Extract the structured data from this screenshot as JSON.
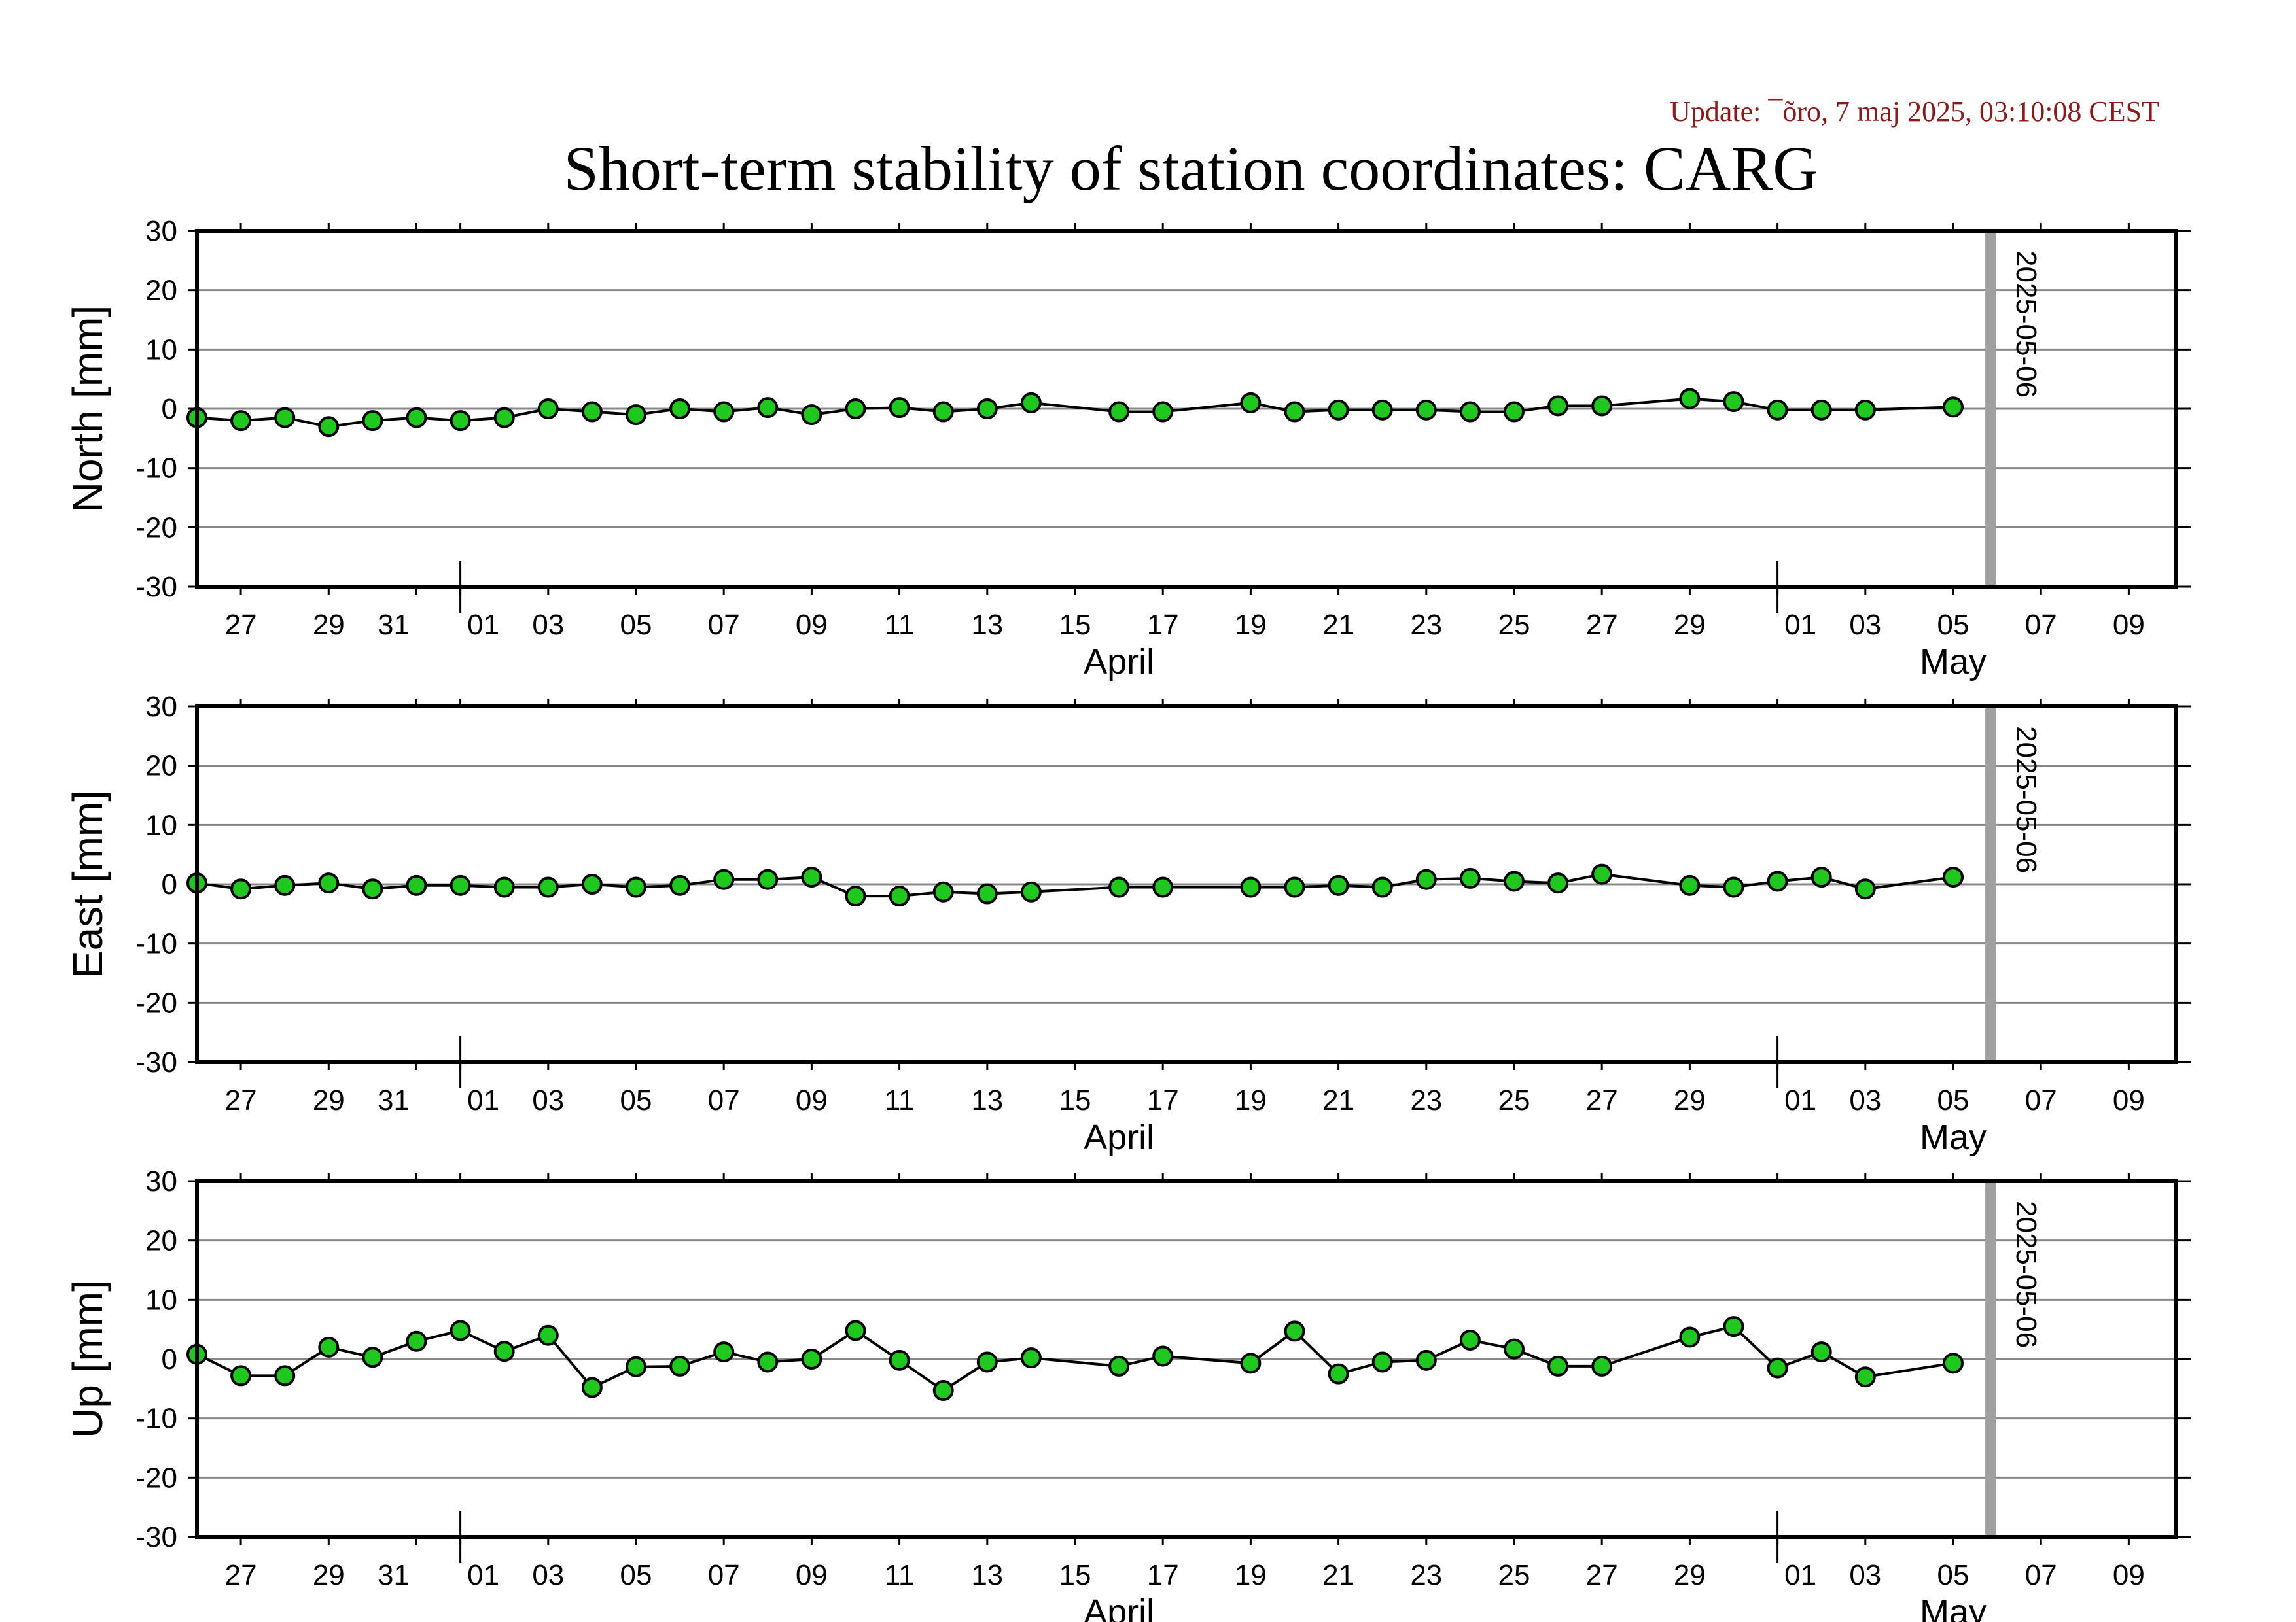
{
  "update_text": "Update: ¯õro, 7 maj 2025, 03:10:08 CEST",
  "title": "Short-term stability of station coordinates: CARG",
  "colors": {
    "marker_fill": "#1fc71f",
    "marker_line": "#000000",
    "grid": "#888888",
    "today_bar": "#a0a0a0",
    "update": "#8b1a1a"
  },
  "chart_data": [
    {
      "type": "line",
      "ylabel": "North [mm]",
      "ylim": [
        -30,
        30
      ],
      "yticks": [
        30,
        20,
        10,
        0,
        -10,
        -20,
        -30
      ],
      "xlim": [
        "2025-03-26",
        "2025-05-10"
      ],
      "xtick_labels": [
        "27",
        "29",
        "31",
        "01",
        "03",
        "05",
        "07",
        "09",
        "11",
        "13",
        "15",
        "17",
        "19",
        "21",
        "23",
        "25",
        "27",
        "29",
        "01",
        "03",
        "05",
        "07",
        "09"
      ],
      "months": [
        {
          "label": "April",
          "center": "2025-04-16"
        },
        {
          "label": "May",
          "center": "2025-05-05"
        }
      ],
      "marker_label": "2025-05-06",
      "grid": true,
      "series": [
        {
          "x": [
            "2025-03-26",
            "2025-03-27",
            "2025-03-28",
            "2025-03-29",
            "2025-03-30",
            "2025-03-31",
            "2025-04-01",
            "2025-04-02",
            "2025-04-03",
            "2025-04-04",
            "2025-04-05",
            "2025-04-06",
            "2025-04-07",
            "2025-04-08",
            "2025-04-09",
            "2025-04-10",
            "2025-04-11",
            "2025-04-12",
            "2025-04-13",
            "2025-04-14",
            "2025-04-16",
            "2025-04-17",
            "2025-04-19",
            "2025-04-20",
            "2025-04-21",
            "2025-04-22",
            "2025-04-23",
            "2025-04-24",
            "2025-04-25",
            "2025-04-26",
            "2025-04-27",
            "2025-04-29",
            "2025-04-30",
            "2025-05-01",
            "2025-05-02",
            "2025-05-03",
            "2025-05-05"
          ],
          "y": [
            -1.5,
            -2,
            -1.5,
            -3,
            -2,
            -1.5,
            -2,
            -1.5,
            0,
            -0.5,
            -1,
            0,
            -0.5,
            0.2,
            -1,
            0,
            0.2,
            -0.5,
            0,
            1,
            -0.5,
            -0.5,
            1,
            -0.5,
            -0.2,
            -0.2,
            -0.2,
            -0.5,
            -0.5,
            0.5,
            0.5,
            1.7,
            1.2,
            -0.2,
            -0.2,
            -0.2,
            0.3
          ]
        }
      ]
    },
    {
      "type": "line",
      "ylabel": "East [mm]",
      "ylim": [
        -30,
        30
      ],
      "yticks": [
        30,
        20,
        10,
        0,
        -10,
        -20,
        -30
      ],
      "xlim": [
        "2025-03-26",
        "2025-05-10"
      ],
      "xtick_labels": [
        "27",
        "29",
        "31",
        "01",
        "03",
        "05",
        "07",
        "09",
        "11",
        "13",
        "15",
        "17",
        "19",
        "21",
        "23",
        "25",
        "27",
        "29",
        "01",
        "03",
        "05",
        "07",
        "09"
      ],
      "months": [
        {
          "label": "April",
          "center": "2025-04-16"
        },
        {
          "label": "May",
          "center": "2025-05-05"
        }
      ],
      "marker_label": "2025-05-06",
      "grid": true,
      "series": [
        {
          "x": [
            "2025-03-26",
            "2025-03-27",
            "2025-03-28",
            "2025-03-29",
            "2025-03-30",
            "2025-03-31",
            "2025-04-01",
            "2025-04-02",
            "2025-04-03",
            "2025-04-04",
            "2025-04-05",
            "2025-04-06",
            "2025-04-07",
            "2025-04-08",
            "2025-04-09",
            "2025-04-10",
            "2025-04-11",
            "2025-04-12",
            "2025-04-13",
            "2025-04-14",
            "2025-04-16",
            "2025-04-17",
            "2025-04-19",
            "2025-04-20",
            "2025-04-21",
            "2025-04-22",
            "2025-04-23",
            "2025-04-24",
            "2025-04-25",
            "2025-04-26",
            "2025-04-27",
            "2025-04-29",
            "2025-04-30",
            "2025-05-01",
            "2025-05-02",
            "2025-05-03",
            "2025-05-05"
          ],
          "y": [
            0.2,
            -0.8,
            -0.2,
            0.2,
            -0.8,
            -0.2,
            -0.2,
            -0.5,
            -0.5,
            0,
            -0.5,
            -0.2,
            0.8,
            0.8,
            1.2,
            -2,
            -2,
            -1.3,
            -1.6,
            -1.3,
            -0.5,
            -0.5,
            -0.5,
            -0.5,
            -0.2,
            -0.5,
            0.8,
            1,
            0.5,
            0.2,
            1.7,
            -0.2,
            -0.5,
            0.5,
            1.2,
            -0.8,
            1.2
          ]
        }
      ]
    },
    {
      "type": "line",
      "ylabel": "Up [mm]",
      "ylim": [
        -30,
        30
      ],
      "yticks": [
        30,
        20,
        10,
        0,
        -10,
        -20,
        -30
      ],
      "xlim": [
        "2025-03-26",
        "2025-05-10"
      ],
      "xtick_labels": [
        "27",
        "29",
        "31",
        "01",
        "03",
        "05",
        "07",
        "09",
        "11",
        "13",
        "15",
        "17",
        "19",
        "21",
        "23",
        "25",
        "27",
        "29",
        "01",
        "03",
        "05",
        "07",
        "09"
      ],
      "months": [
        {
          "label": "April",
          "center": "2025-04-16"
        },
        {
          "label": "May",
          "center": "2025-05-05"
        }
      ],
      "marker_label": "2025-05-06",
      "grid": true,
      "series": [
        {
          "x": [
            "2025-03-26",
            "2025-03-27",
            "2025-03-28",
            "2025-03-29",
            "2025-03-30",
            "2025-03-31",
            "2025-04-01",
            "2025-04-02",
            "2025-04-03",
            "2025-04-04",
            "2025-04-05",
            "2025-04-06",
            "2025-04-07",
            "2025-04-08",
            "2025-04-09",
            "2025-04-10",
            "2025-04-11",
            "2025-04-12",
            "2025-04-13",
            "2025-04-14",
            "2025-04-16",
            "2025-04-17",
            "2025-04-19",
            "2025-04-20",
            "2025-04-21",
            "2025-04-22",
            "2025-04-23",
            "2025-04-24",
            "2025-04-25",
            "2025-04-26",
            "2025-04-27",
            "2025-04-29",
            "2025-04-30",
            "2025-05-01",
            "2025-05-02",
            "2025-05-03",
            "2025-05-05"
          ],
          "y": [
            0.8,
            -2.8,
            -2.8,
            2,
            0.3,
            3,
            4.8,
            1.3,
            4,
            -4.8,
            -1.3,
            -1.2,
            1.2,
            -0.5,
            0,
            4.8,
            -0.2,
            -5.3,
            -0.5,
            0.2,
            -1.2,
            0.5,
            -0.7,
            4.7,
            -2.5,
            -0.5,
            -0.2,
            3.2,
            1.7,
            -1.2,
            -1.2,
            3.7,
            5.5,
            -1.5,
            1.2,
            -3,
            -0.7
          ]
        }
      ]
    }
  ]
}
